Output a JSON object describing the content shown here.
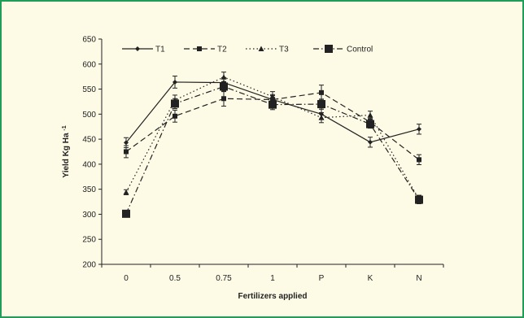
{
  "colors": {
    "frame_border": "#1f9e5a",
    "background": "#fdfbe6",
    "ink": "#222222"
  },
  "chart_data": {
    "type": "line",
    "title": "",
    "xlabel": "Fertilizers applied",
    "ylabel": "Yield Kg Ha",
    "ylabel_superscript": "-1",
    "categories": [
      "0",
      "0.5",
      "0.75",
      "1",
      "P",
      "K",
      "N"
    ],
    "ylim": [
      200,
      650
    ],
    "yticks": [
      200,
      250,
      300,
      350,
      400,
      450,
      500,
      550,
      600,
      650
    ],
    "grid": false,
    "legend_position": "top",
    "series": [
      {
        "name": "T1",
        "line_style": "solid",
        "marker": "small-diamond",
        "values": [
          443,
          564,
          563,
          529,
          500,
          444,
          470
        ],
        "errors": [
          10,
          12,
          10,
          8,
          10,
          10,
          10
        ]
      },
      {
        "name": "T2",
        "line_style": "dashed",
        "marker": "small-square",
        "values": [
          425,
          496,
          531,
          529,
          543,
          484,
          409
        ],
        "errors": [
          12,
          12,
          15,
          10,
          15,
          8,
          10
        ]
      },
      {
        "name": "T3",
        "line_style": "dotted",
        "marker": "small-triangle",
        "values": [
          344,
          528,
          574,
          535,
          493,
          498,
          330
        ],
        "errors": [
          5,
          10,
          10,
          10,
          10,
          8,
          8
        ]
      },
      {
        "name": "Control",
        "line_style": "dash-dot",
        "marker": "large-square",
        "values": [
          301,
          521,
          555,
          519,
          520,
          480,
          329
        ],
        "errors": [
          5,
          10,
          10,
          10,
          10,
          8,
          8
        ]
      }
    ]
  }
}
